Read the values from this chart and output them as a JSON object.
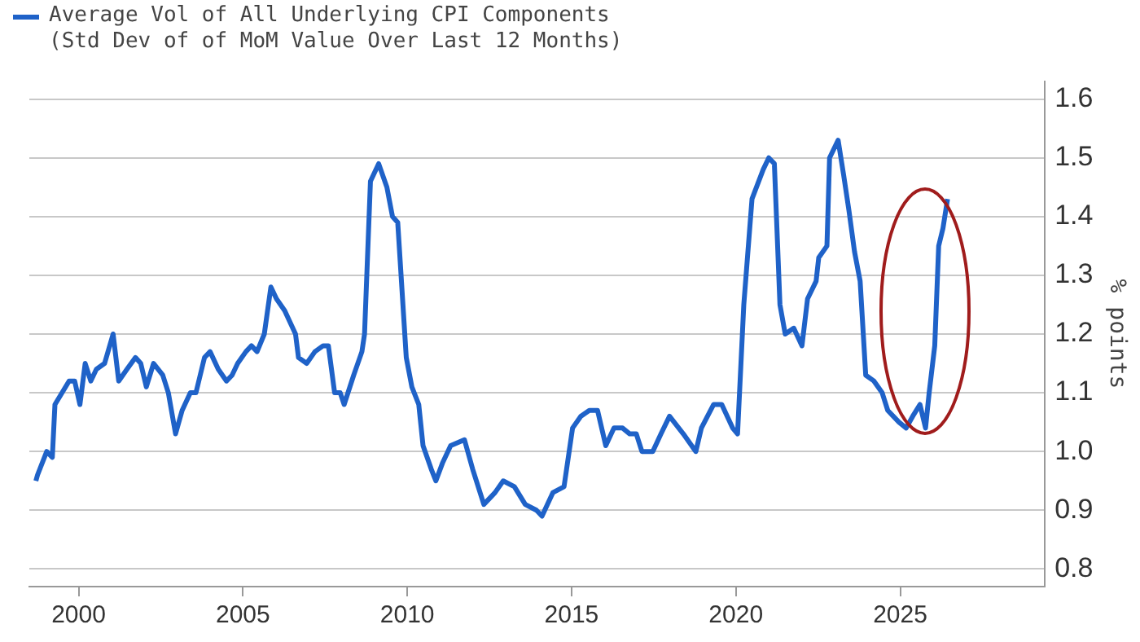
{
  "chart_data": {
    "type": "line",
    "ylabel": "% points",
    "legend": "top left",
    "grid": "y",
    "xlim": [
      1998.5,
      2029.4
    ],
    "xticks": [
      2000,
      2005,
      2010,
      2015,
      2020,
      2025
    ],
    "ylim": [
      0.77,
      1.63
    ],
    "yticks": [
      0.8,
      0.9,
      {
        "value": 1,
        "label": "1.0"
      },
      1.1,
      1.2,
      1.3,
      1.4,
      1.5,
      1.6
    ],
    "x": [
      1998.7,
      1998.75,
      1999.03,
      1999.2,
      1999.28,
      1999.71,
      1999.88,
      2000.04,
      2000.2,
      2000.37,
      2000.54,
      2000.79,
      2001.05,
      2001.22,
      2001.47,
      2001.73,
      2001.89,
      2002.06,
      2002.28,
      2002.56,
      2002.73,
      2002.95,
      2003.15,
      2003.4,
      2003.57,
      2003.83,
      2004.0,
      2004.25,
      2004.5,
      2004.67,
      2004.84,
      2005.09,
      2005.26,
      2005.43,
      2005.65,
      2005.85,
      2006.02,
      2006.27,
      2006.6,
      2006.69,
      2006.94,
      2007.19,
      2007.44,
      2007.6,
      2007.79,
      2007.96,
      2008.08,
      2008.37,
      2008.62,
      2008.7,
      2008.88,
      2009.13,
      2009.38,
      2009.55,
      2009.71,
      2009.97,
      2010.14,
      2010.35,
      2010.48,
      2010.73,
      2010.87,
      2011.07,
      2011.32,
      2011.74,
      2011.99,
      2012.33,
      2012.67,
      2012.92,
      2013.26,
      2013.59,
      2013.93,
      2014.1,
      2014.43,
      2014.77,
      2015.03,
      2015.28,
      2015.54,
      2015.79,
      2016.04,
      2016.29,
      2016.55,
      2016.77,
      2016.97,
      2017.14,
      2017.47,
      2017.72,
      2017.98,
      2018.4,
      2018.78,
      2018.95,
      2019.32,
      2019.57,
      2019.9,
      2020.05,
      2020.24,
      2020.49,
      2020.83,
      2021.0,
      2021.17,
      2021.34,
      2021.5,
      2021.76,
      2022.01,
      2022.18,
      2022.44,
      2022.52,
      2022.77,
      2022.85,
      2023.11,
      2023.28,
      2023.44,
      2023.61,
      2023.78,
      2023.95,
      2024.2,
      2024.45,
      2024.62,
      2024.96,
      2025.18,
      2025.38,
      2025.6,
      2025.77,
      2025.88,
      2026.05,
      2026.17,
      2026.3,
      2026.44
    ],
    "series": [
      {
        "name": "Average Vol of All Underlying CPI Components (Std Dev of of MoM Value Over Last 12 Months)",
        "color": "#1f62c8",
        "values": [
          0.95,
          0.96,
          1.0,
          0.99,
          1.08,
          1.12,
          1.12,
          1.08,
          1.15,
          1.12,
          1.14,
          1.15,
          1.2,
          1.12,
          1.14,
          1.16,
          1.15,
          1.11,
          1.15,
          1.13,
          1.1,
          1.03,
          1.07,
          1.1,
          1.1,
          1.16,
          1.17,
          1.14,
          1.12,
          1.13,
          1.15,
          1.17,
          1.18,
          1.17,
          1.2,
          1.28,
          1.26,
          1.24,
          1.2,
          1.16,
          1.15,
          1.17,
          1.18,
          1.18,
          1.1,
          1.1,
          1.08,
          1.13,
          1.17,
          1.2,
          1.46,
          1.49,
          1.45,
          1.4,
          1.39,
          1.16,
          1.11,
          1.08,
          1.01,
          0.97,
          0.95,
          0.98,
          1.01,
          1.02,
          0.97,
          0.91,
          0.93,
          0.95,
          0.94,
          0.91,
          0.9,
          0.89,
          0.93,
          0.94,
          1.04,
          1.06,
          1.07,
          1.07,
          1.01,
          1.04,
          1.04,
          1.03,
          1.03,
          1.0,
          1.0,
          1.03,
          1.06,
          1.03,
          1.0,
          1.04,
          1.08,
          1.08,
          1.04,
          1.03,
          1.25,
          1.43,
          1.48,
          1.5,
          1.49,
          1.25,
          1.2,
          1.21,
          1.18,
          1.26,
          1.29,
          1.33,
          1.35,
          1.5,
          1.53,
          1.47,
          1.41,
          1.34,
          1.29,
          1.13,
          1.12,
          1.1,
          1.07,
          1.05,
          1.04,
          1.06,
          1.08,
          1.04,
          1.1,
          1.18,
          1.35,
          1.38,
          1.43
        ]
      }
    ]
  }
}
